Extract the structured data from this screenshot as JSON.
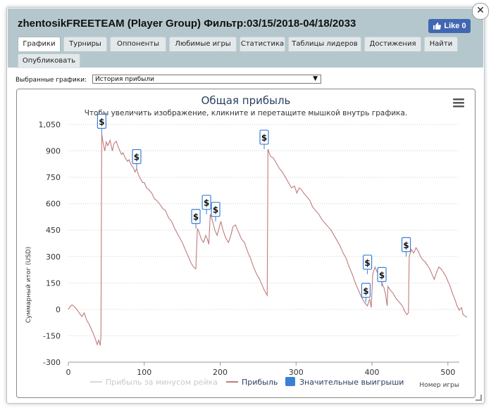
{
  "window": {
    "title": "zhentosikFREETEAM (Player Group) Фильтр:03/15/2018-04/18/2033",
    "close_label": "✕",
    "fb_like_label": "Like 0"
  },
  "tabs": [
    {
      "label": "Графики",
      "active": true
    },
    {
      "label": "Турниры",
      "active": false
    },
    {
      "label": "Оппоненты",
      "active": false
    },
    {
      "label": "Любимые игры",
      "active": false
    },
    {
      "label": "Статистика",
      "active": false
    },
    {
      "label": "Таблицы лидеров",
      "active": false
    },
    {
      "label": "Достижения",
      "active": false
    },
    {
      "label": "Найти",
      "active": false
    },
    {
      "label": "Опубликовать",
      "active": false
    }
  ],
  "toolbar": {
    "graph_select_label": "Выбранные графики:",
    "graph_select_value": "История прибыли",
    "dropdown_arrow": "▼"
  },
  "colors": {
    "title_bar": "#b4c7cd",
    "profit_line": "#c07b7b",
    "rake_line": "#d8d8d8",
    "big_win_marker": "#3a7fd5",
    "chart_title": "#2a3f5f"
  },
  "chart_data": {
    "type": "line",
    "title": "Общая прибыль",
    "subtitle": "Чтобы увеличить изображение, кликните и перетащите мышкой внутрь графика.",
    "xlabel": "Номер игры",
    "ylabel": "Суммарный итог (USD)",
    "xlim": [
      0,
      515
    ],
    "ylim": [
      -300,
      1050
    ],
    "x_ticks": [
      "0",
      "100",
      "200",
      "300",
      "400",
      "500"
    ],
    "y_ticks": [
      "1,050",
      "900",
      "750",
      "600",
      "450",
      "300",
      "150",
      "0",
      "-150",
      "-300"
    ],
    "grid": true,
    "legend_position": "bottom",
    "legend": [
      {
        "name": "Прибыль за минусом рейка",
        "visible": false
      },
      {
        "name": "Прибыль",
        "visible": true
      },
      {
        "name": "Значительные выигрыши",
        "visible": true
      }
    ],
    "series": [
      {
        "name": "Прибыль",
        "points": [
          [
            0,
            0
          ],
          [
            3,
            20
          ],
          [
            5,
            25
          ],
          [
            8,
            15
          ],
          [
            12,
            -5
          ],
          [
            15,
            -25
          ],
          [
            18,
            -40
          ],
          [
            21,
            -20
          ],
          [
            24,
            -60
          ],
          [
            28,
            -90
          ],
          [
            32,
            -130
          ],
          [
            35,
            -160
          ],
          [
            38,
            -200
          ],
          [
            40,
            -175
          ],
          [
            42,
            -205
          ],
          [
            43,
            -150
          ],
          [
            44,
            1000
          ],
          [
            46,
            940
          ],
          [
            48,
            900
          ],
          [
            50,
            950
          ],
          [
            52,
            930
          ],
          [
            55,
            960
          ],
          [
            58,
            900
          ],
          [
            60,
            940
          ],
          [
            63,
            955
          ],
          [
            66,
            920
          ],
          [
            70,
            880
          ],
          [
            72,
            890
          ],
          [
            75,
            860
          ],
          [
            78,
            840
          ],
          [
            80,
            850
          ],
          [
            83,
            820
          ],
          [
            86,
            800
          ],
          [
            88,
            780
          ],
          [
            90,
            800
          ],
          [
            92,
            770
          ],
          [
            95,
            740
          ],
          [
            98,
            720
          ],
          [
            100,
            720
          ],
          [
            103,
            690
          ],
          [
            106,
            680
          ],
          [
            110,
            660
          ],
          [
            113,
            630
          ],
          [
            116,
            620
          ],
          [
            120,
            600
          ],
          [
            124,
            575
          ],
          [
            128,
            560
          ],
          [
            132,
            520
          ],
          [
            136,
            500
          ],
          [
            140,
            460
          ],
          [
            145,
            420
          ],
          [
            150,
            380
          ],
          [
            155,
            330
          ],
          [
            158,
            300
          ],
          [
            162,
            260
          ],
          [
            165,
            240
          ],
          [
            168,
            230
          ],
          [
            170,
            460
          ],
          [
            172,
            440
          ],
          [
            175,
            400
          ],
          [
            178,
            380
          ],
          [
            181,
            420
          ],
          [
            183,
            400
          ],
          [
            185,
            370
          ],
          [
            187,
            540
          ],
          [
            190,
            500
          ],
          [
            193,
            450
          ],
          [
            196,
            420
          ],
          [
            199,
            470
          ],
          [
            201,
            500
          ],
          [
            203,
            460
          ],
          [
            206,
            420
          ],
          [
            208,
            400
          ],
          [
            211,
            380
          ],
          [
            214,
            420
          ],
          [
            217,
            470
          ],
          [
            220,
            480
          ],
          [
            224,
            440
          ],
          [
            228,
            400
          ],
          [
            232,
            380
          ],
          [
            236,
            330
          ],
          [
            240,
            290
          ],
          [
            244,
            240
          ],
          [
            248,
            200
          ],
          [
            252,
            170
          ],
          [
            255,
            140
          ],
          [
            258,
            110
          ],
          [
            262,
            80
          ],
          [
            263,
            910
          ],
          [
            266,
            870
          ],
          [
            270,
            860
          ],
          [
            274,
            830
          ],
          [
            278,
            800
          ],
          [
            282,
            780
          ],
          [
            286,
            750
          ],
          [
            290,
            720
          ],
          [
            294,
            690
          ],
          [
            298,
            700
          ],
          [
            301,
            660
          ],
          [
            304,
            690
          ],
          [
            307,
            680
          ],
          [
            310,
            660
          ],
          [
            314,
            640
          ],
          [
            318,
            620
          ],
          [
            322,
            580
          ],
          [
            326,
            560
          ],
          [
            330,
            540
          ],
          [
            334,
            510
          ],
          [
            338,
            490
          ],
          [
            342,
            470
          ],
          [
            346,
            450
          ],
          [
            350,
            420
          ],
          [
            354,
            390
          ],
          [
            358,
            360
          ],
          [
            362,
            320
          ],
          [
            366,
            290
          ],
          [
            370,
            240
          ],
          [
            374,
            200
          ],
          [
            378,
            150
          ],
          [
            382,
            110
          ],
          [
            386,
            70
          ],
          [
            390,
            40
          ],
          [
            394,
            20
          ],
          [
            397,
            60
          ],
          [
            399,
            10
          ],
          [
            401,
            200
          ],
          [
            404,
            240
          ],
          [
            407,
            210
          ],
          [
            410,
            180
          ],
          [
            413,
            150
          ],
          [
            416,
            120
          ],
          [
            418,
            80
          ],
          [
            420,
            20
          ],
          [
            421,
            130
          ],
          [
            424,
            110
          ],
          [
            428,
            90
          ],
          [
            432,
            60
          ],
          [
            436,
            40
          ],
          [
            440,
            20
          ],
          [
            443,
            -10
          ],
          [
            446,
            -30
          ],
          [
            448,
            -20
          ],
          [
            449,
            300
          ],
          [
            452,
            340
          ],
          [
            455,
            320
          ],
          [
            458,
            350
          ],
          [
            461,
            330
          ],
          [
            464,
            300
          ],
          [
            467,
            280
          ],
          [
            470,
            270
          ],
          [
            473,
            250
          ],
          [
            476,
            230
          ],
          [
            479,
            200
          ],
          [
            482,
            170
          ],
          [
            485,
            210
          ],
          [
            488,
            240
          ],
          [
            491,
            230
          ],
          [
            494,
            210
          ],
          [
            497,
            190
          ],
          [
            500,
            160
          ],
          [
            503,
            130
          ],
          [
            506,
            90
          ],
          [
            509,
            60
          ],
          [
            512,
            20
          ],
          [
            515,
            -5
          ],
          [
            518,
            10
          ],
          [
            520,
            -30
          ],
          [
            525,
            -45
          ]
        ]
      }
    ],
    "big_wins": [
      {
        "x": 44,
        "y": 1000
      },
      {
        "x": 90,
        "y": 800
      },
      {
        "x": 168,
        "y": 460
      },
      {
        "x": 182,
        "y": 540
      },
      {
        "x": 194,
        "y": 500
      },
      {
        "x": 258,
        "y": 910
      },
      {
        "x": 394,
        "y": 200
      },
      {
        "x": 392,
        "y": 40
      },
      {
        "x": 413,
        "y": 130
      },
      {
        "x": 445,
        "y": 300
      }
    ],
    "big_win_marker_label": "$",
    "menu_icon": "hamburger-menu-icon"
  }
}
